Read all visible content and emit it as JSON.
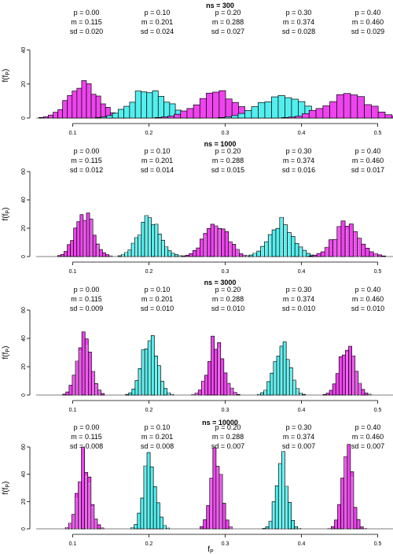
{
  "chart_data": [
    {
      "type": "histogram",
      "title": "ns = 300",
      "ylabel": "f(f",
      "ylabel_sub": "P",
      "ylabel_close": ")",
      "ylim": [
        0,
        50
      ],
      "yticks": [
        0,
        20,
        40
      ],
      "xlim": [
        0.05,
        0.52
      ],
      "xticks": [
        0.1,
        0.2,
        0.3,
        0.4,
        0.5
      ],
      "series": [
        {
          "p": "p = 0.00",
          "m": "m = 0.115",
          "sd": "sd = 0.020",
          "color": "#ee44ee",
          "mean": 0.115,
          "sdv": 0.02,
          "peak": 20
        },
        {
          "p": "p = 0.10",
          "m": "m = 0.201",
          "sd": "sd = 0.024",
          "color": "#55eeee",
          "mean": 0.201,
          "sdv": 0.024,
          "peak": 16.5
        },
        {
          "p": "p = 0.20",
          "m": "m = 0.288",
          "sd": "sd = 0.027",
          "color": "#ee44ee",
          "mean": 0.288,
          "sdv": 0.027,
          "peak": 14.5
        },
        {
          "p": "p = 0.30",
          "m": "m = 0.374",
          "sd": "sd = 0.028",
          "color": "#55eeee",
          "mean": 0.374,
          "sdv": 0.028,
          "peak": 14
        },
        {
          "p": "p = 0.40",
          "m": "m = 0.460",
          "sd": "sd = 0.029",
          "color": "#ee44ee",
          "mean": 0.46,
          "sdv": 0.029,
          "peak": 13.5
        }
      ]
    },
    {
      "type": "histogram",
      "title": "ns = 1000",
      "ylabel": "f(f",
      "ylabel_sub": "P",
      "ylabel_close": ")",
      "ylim": [
        0,
        60
      ],
      "yticks": [
        0,
        20,
        40,
        60
      ],
      "xlim": [
        0.05,
        0.52
      ],
      "xticks": [
        0.1,
        0.2,
        0.3,
        0.4,
        0.5
      ],
      "series": [
        {
          "p": "p = 0.00",
          "m": "m = 0.115",
          "sd": "sd = 0.012",
          "color": "#ee44ee",
          "mean": 0.115,
          "sdv": 0.012,
          "peak": 31
        },
        {
          "p": "p = 0.10",
          "m": "m = 0.201",
          "sd": "sd = 0.014",
          "color": "#55eeee",
          "mean": 0.201,
          "sdv": 0.014,
          "peak": 28
        },
        {
          "p": "p = 0.20",
          "m": "m = 0.288",
          "sd": "sd = 0.015",
          "color": "#ee44ee",
          "mean": 0.288,
          "sdv": 0.015,
          "peak": 25
        },
        {
          "p": "p = 0.30",
          "m": "m = 0.374",
          "sd": "sd = 0.016",
          "color": "#55eeee",
          "mean": 0.374,
          "sdv": 0.016,
          "peak": 24
        },
        {
          "p": "p = 0.40",
          "m": "m = 0.460",
          "sd": "sd = 0.017",
          "color": "#ee44ee",
          "mean": 0.46,
          "sdv": 0.017,
          "peak": 23
        }
      ]
    },
    {
      "type": "histogram",
      "title": "ns = 3000",
      "ylabel": "f(f",
      "ylabel_sub": "P",
      "ylabel_close": ")",
      "ylim": [
        0,
        60
      ],
      "yticks": [
        0,
        20,
        40,
        60
      ],
      "xlim": [
        0.05,
        0.52
      ],
      "xticks": [
        0.1,
        0.2,
        0.3,
        0.4,
        0.5
      ],
      "series": [
        {
          "p": "p = 0.00",
          "m": "m = 0.115",
          "sd": "sd = 0.009",
          "color": "#ee44ee",
          "mean": 0.115,
          "sdv": 0.009,
          "peak": 43
        },
        {
          "p": "p = 0.10",
          "m": "m = 0.201",
          "sd": "sd = 0.010",
          "color": "#55eeee",
          "mean": 0.201,
          "sdv": 0.01,
          "peak": 40
        },
        {
          "p": "p = 0.20",
          "m": "m = 0.288",
          "sd": "sd = 0.010",
          "color": "#ee44ee",
          "mean": 0.288,
          "sdv": 0.01,
          "peak": 39
        },
        {
          "p": "p = 0.30",
          "m": "m = 0.374",
          "sd": "sd = 0.010",
          "color": "#55eeee",
          "mean": 0.374,
          "sdv": 0.01,
          "peak": 37
        },
        {
          "p": "p = 0.40",
          "m": "m = 0.460",
          "sd": "sd = 0.010",
          "color": "#ee44ee",
          "mean": 0.46,
          "sdv": 0.01,
          "peak": 37
        }
      ]
    },
    {
      "type": "histogram",
      "title": "ns = 10000",
      "ylabel": "f(f",
      "ylabel_sub": "P",
      "ylabel_close": ")",
      "xlabel": "f",
      "xlabel_sub": "P",
      "ylim": [
        0,
        60
      ],
      "yticks": [
        0,
        20,
        40,
        60
      ],
      "xlim": [
        0.05,
        0.52
      ],
      "xticks": [
        0.1,
        0.2,
        0.3,
        0.4,
        0.5
      ],
      "series": [
        {
          "p": "p = 0.00",
          "m": "m = 0.115",
          "sd": "sd = 0.008",
          "color": "#ee44ee",
          "mean": 0.115,
          "sdv": 0.008,
          "peak": 52
        },
        {
          "p": "p = 0.10",
          "m": "m = 0.201",
          "sd": "sd = 0.008",
          "color": "#55eeee",
          "mean": 0.201,
          "sdv": 0.008,
          "peak": 52
        },
        {
          "p": "p = 0.20",
          "m": "m = 0.288",
          "sd": "sd = 0.007",
          "color": "#ee44ee",
          "mean": 0.288,
          "sdv": 0.007,
          "peak": 54
        },
        {
          "p": "p = 0.30",
          "m": "m = 0.374",
          "sd": "sd = 0.007",
          "color": "#55eeee",
          "mean": 0.374,
          "sdv": 0.007,
          "peak": 54
        },
        {
          "p": "p = 0.40",
          "m": "m = 0.460",
          "sd": "sd = 0.007",
          "color": "#ee44ee",
          "mean": 0.46,
          "sdv": 0.007,
          "peak": 56
        }
      ]
    }
  ]
}
